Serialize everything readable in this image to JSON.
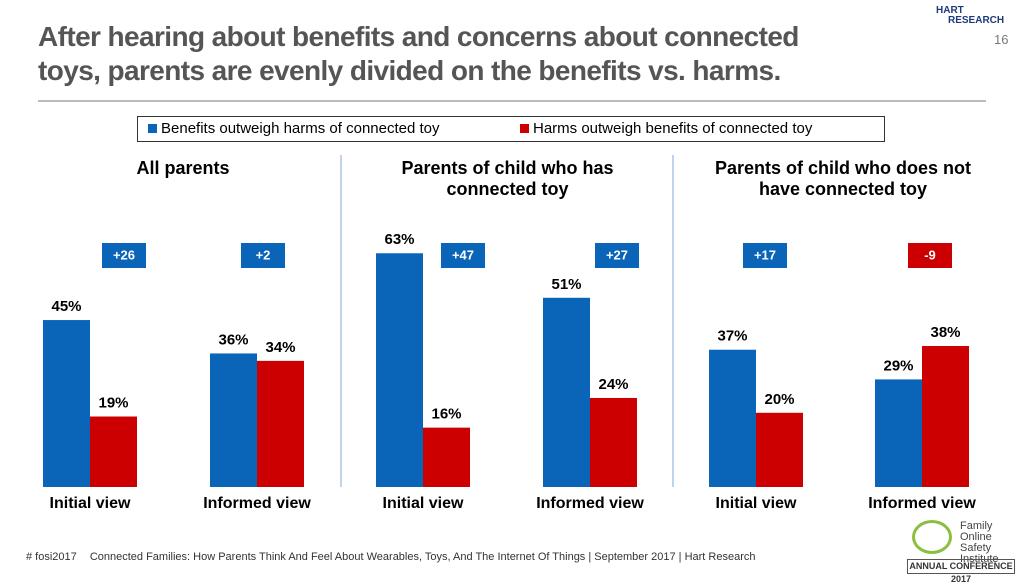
{
  "chart_data": {
    "type": "bar",
    "title": [
      "After hearing about benefits and concerns about connected",
      "toys, parents are evenly divided on the benefits vs. harms."
    ],
    "page_number": "16",
    "panels": [
      "All parents",
      "Parents of child who has connected toy",
      "Parents of child who does not have connected toy"
    ],
    "categories": [
      "Initial view",
      "Informed view",
      "Initial view",
      "Informed view",
      "Initial view",
      "Informed view"
    ],
    "series": [
      {
        "name": "Benefits outweigh harms of connected toy",
        "color": "#0a64b8",
        "values": [
          45,
          36,
          63,
          51,
          37,
          29
        ],
        "value_labels": [
          "45%",
          "36%",
          "63%",
          "51%",
          "37%",
          "29%"
        ]
      },
      {
        "name": "Harms outweigh benefits of connected toy",
        "color": "#cc0000",
        "values": [
          19,
          34,
          16,
          24,
          20,
          38
        ],
        "value_labels": [
          "19%",
          "34%",
          "16%",
          "24%",
          "20%",
          "38%"
        ]
      }
    ],
    "net_labels": [
      "+26",
      "+2",
      "+47",
      "+27",
      "+17",
      "-9"
    ],
    "footer": [
      "# fosi2017",
      "Connected Families: How Parents Think And Feel About Wearables, Toys, And The Internet Of Things | September 2017 | Hart Research"
    ],
    "logo_top": [
      "HART",
      "RESEARCH"
    ],
    "logo_bottom": [
      "Family",
      "Online Safety",
      "Institute",
      "ANNUAL CONFERENCE 2017"
    ]
  }
}
